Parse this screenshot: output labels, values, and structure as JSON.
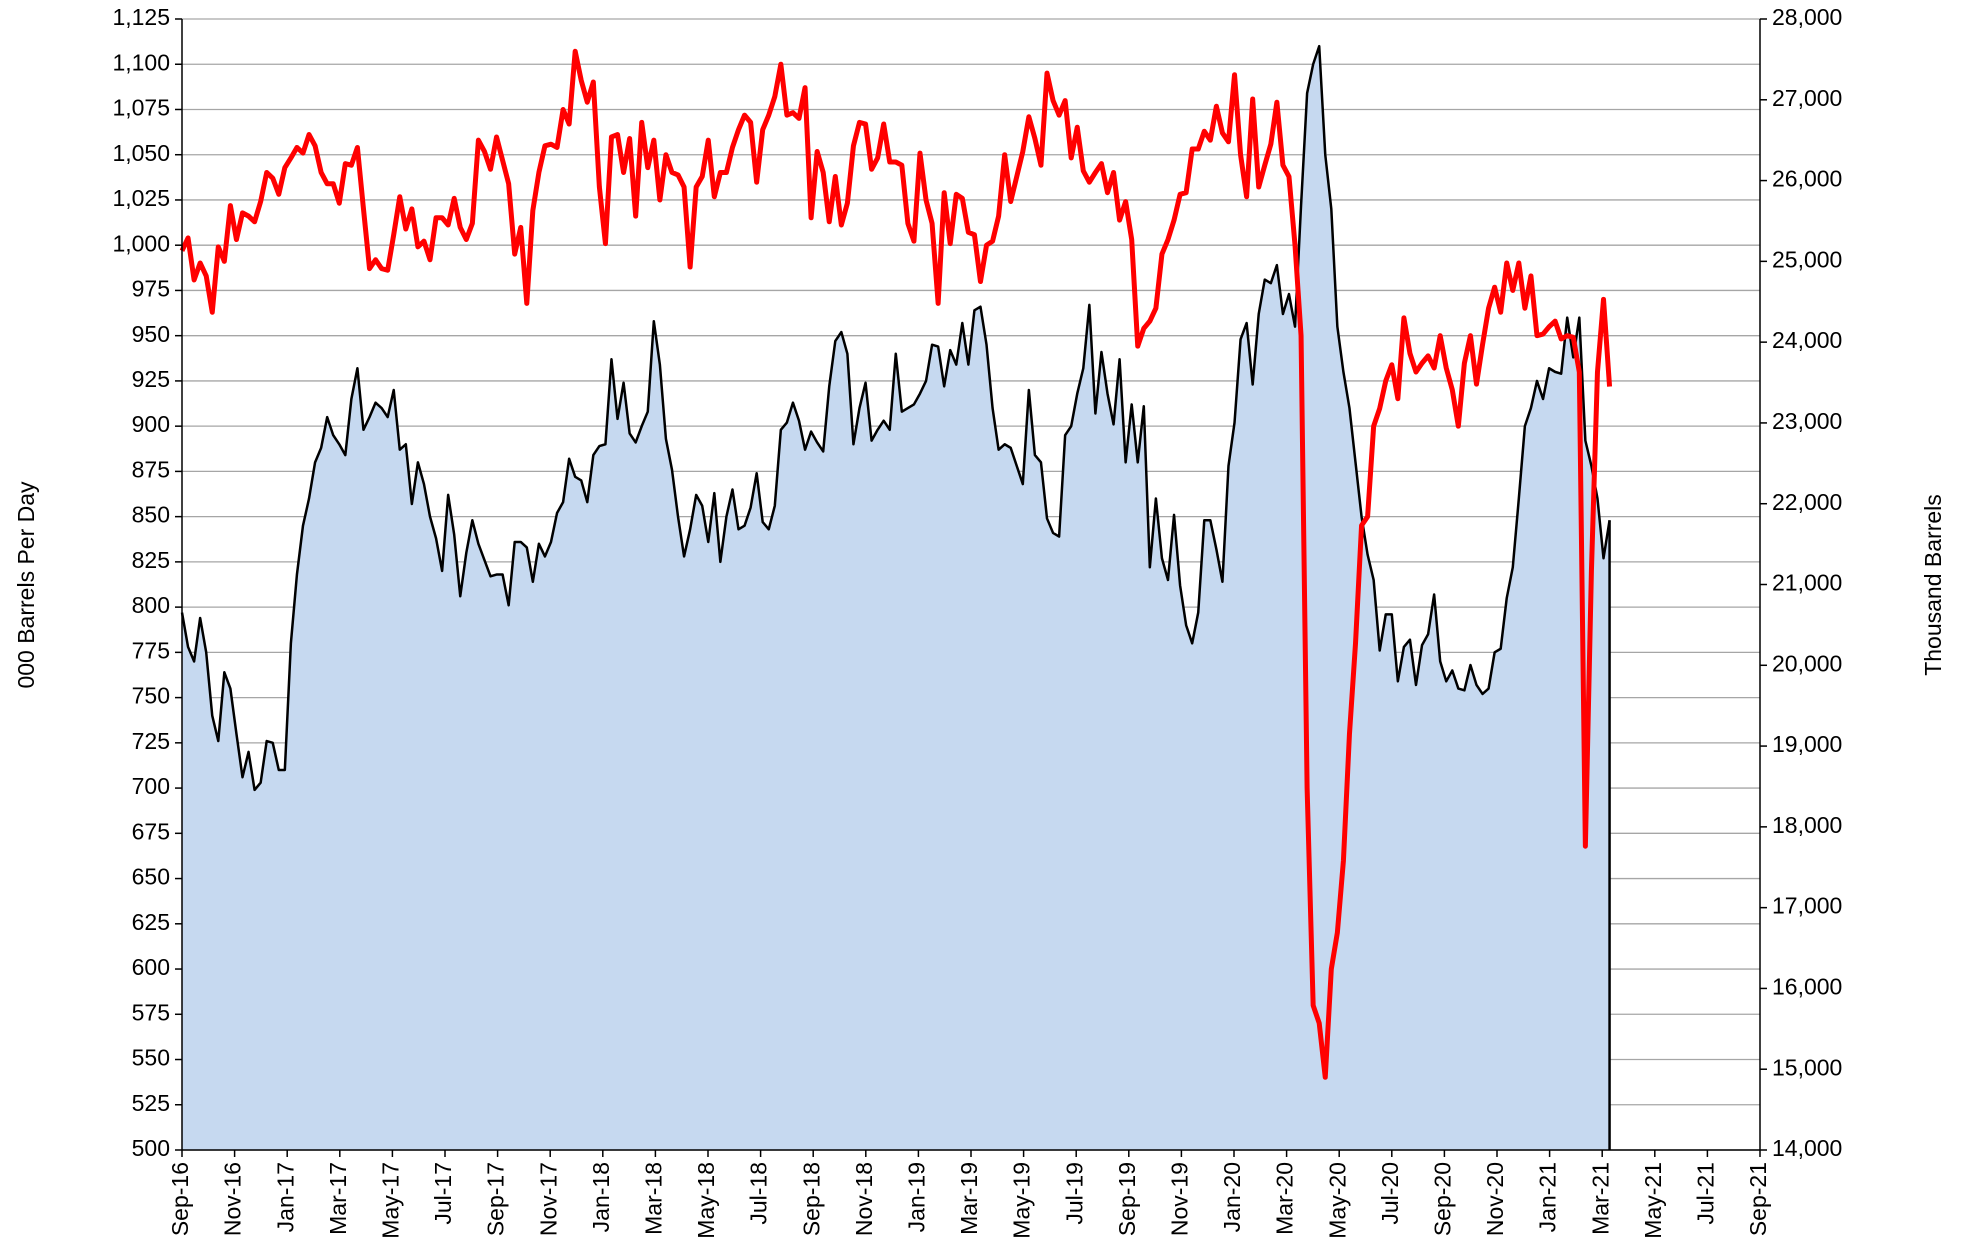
{
  "chart_data": {
    "type": "line",
    "ylabel": "000 Barrels Per Day",
    "y2label": "Thousand Barrels",
    "xlim": [
      0,
      60
    ],
    "xticks": [
      {
        "value": 0,
        "label": "Sep-16"
      },
      {
        "value": 2,
        "label": "Nov-16"
      },
      {
        "value": 4,
        "label": "Jan-17"
      },
      {
        "value": 6,
        "label": "Mar-17"
      },
      {
        "value": 8,
        "label": "May-17"
      },
      {
        "value": 10,
        "label": "Jul-17"
      },
      {
        "value": 12,
        "label": "Sep-17"
      },
      {
        "value": 14,
        "label": "Nov-17"
      },
      {
        "value": 16,
        "label": "Jan-18"
      },
      {
        "value": 18,
        "label": "Mar-18"
      },
      {
        "value": 20,
        "label": "May-18"
      },
      {
        "value": 22,
        "label": "Jul-18"
      },
      {
        "value": 24,
        "label": "Sep-18"
      },
      {
        "value": 26,
        "label": "Nov-18"
      },
      {
        "value": 28,
        "label": "Jan-19"
      },
      {
        "value": 30,
        "label": "Mar-19"
      },
      {
        "value": 32,
        "label": "May-19"
      },
      {
        "value": 34,
        "label": "Jul-19"
      },
      {
        "value": 36,
        "label": "Sep-19"
      },
      {
        "value": 38,
        "label": "Nov-19"
      },
      {
        "value": 40,
        "label": "Jan-20"
      },
      {
        "value": 42,
        "label": "Mar-20"
      },
      {
        "value": 44,
        "label": "May-20"
      },
      {
        "value": 46,
        "label": "Jul-20"
      },
      {
        "value": 48,
        "label": "Sep-20"
      },
      {
        "value": 50,
        "label": "Nov-20"
      },
      {
        "value": 52,
        "label": "Jan-21"
      },
      {
        "value": 54,
        "label": "Mar-21"
      },
      {
        "value": 56,
        "label": "May-21"
      },
      {
        "value": 58,
        "label": "Jul-21"
      },
      {
        "value": 60,
        "label": "Sep-21"
      }
    ],
    "ylim": [
      500,
      1125
    ],
    "yticks": [
      500,
      525,
      550,
      575,
      600,
      625,
      650,
      675,
      700,
      725,
      750,
      775,
      800,
      825,
      850,
      875,
      900,
      925,
      950,
      975,
      {
        "value": 1000,
        "label": "1,000"
      },
      {
        "value": 1025,
        "label": "1,025"
      },
      {
        "value": 1050,
        "label": "1,050"
      },
      {
        "value": 1075,
        "label": "1,075"
      },
      {
        "value": 1100,
        "label": "1,100"
      },
      {
        "value": 1125,
        "label": "1,125"
      }
    ],
    "y2lim": [
      14000,
      28000
    ],
    "y2ticks": [
      {
        "value": 14000,
        "label": "14,000"
      },
      {
        "value": 15000,
        "label": "15,000"
      },
      {
        "value": 16000,
        "label": "16,000"
      },
      {
        "value": 17000,
        "label": "17,000"
      },
      {
        "value": 18000,
        "label": "18,000"
      },
      {
        "value": 19000,
        "label": "19,000"
      },
      {
        "value": 20000,
        "label": "20,000"
      },
      {
        "value": 21000,
        "label": "21,000"
      },
      {
        "value": 22000,
        "label": "22,000"
      },
      {
        "value": 23000,
        "label": "23,000"
      },
      {
        "value": 24000,
        "label": "24,000"
      },
      {
        "value": 25000,
        "label": "25,000"
      },
      {
        "value": 26000,
        "label": "26,000"
      },
      {
        "value": 27000,
        "label": "27,000"
      },
      {
        "value": 28000,
        "label": "28,000"
      }
    ],
    "grid": true,
    "x": [
      0,
      0.23,
      0.46,
      0.69,
      0.92,
      1.15,
      1.38,
      1.61,
      1.84,
      2.07,
      2.3,
      2.53,
      2.76,
      2.99,
      3.22,
      3.45,
      3.68,
      3.91,
      4.14,
      4.37,
      4.6,
      4.83,
      5.06,
      5.29,
      5.52,
      5.75,
      5.98,
      6.21,
      6.44,
      6.67,
      6.9,
      7.13,
      7.36,
      7.59,
      7.82,
      8.05,
      8.28,
      8.51,
      8.74,
      8.97,
      9.2,
      9.43,
      9.66,
      9.89,
      10.12,
      10.35,
      10.58,
      10.81,
      11.04,
      11.27,
      11.5,
      11.73,
      11.96,
      12.19,
      12.42,
      12.65,
      12.88,
      13.11,
      13.34,
      13.57,
      13.8,
      14.03,
      14.26,
      14.49,
      14.72,
      14.95,
      15.18,
      15.41,
      15.64,
      15.87,
      16.1,
      16.33,
      16.56,
      16.79,
      17.02,
      17.25,
      17.48,
      17.71,
      17.94,
      18.17,
      18.4,
      18.63,
      18.86,
      19.09,
      19.32,
      19.55,
      19.78,
      20.01,
      20.24,
      20.47,
      20.7,
      20.93,
      21.16,
      21.39,
      21.62,
      21.85,
      22.08,
      22.31,
      22.54,
      22.77,
      23,
      23.23,
      23.46,
      23.69,
      23.92,
      24.15,
      24.38,
      24.61,
      24.84,
      25.07,
      25.3,
      25.53,
      25.76,
      25.99,
      26.22,
      26.45,
      26.68,
      26.91,
      27.14,
      27.37,
      27.6,
      27.83,
      28.06,
      28.29,
      28.52,
      28.75,
      28.98,
      29.21,
      29.44,
      29.67,
      29.9,
      30.13,
      30.36,
      30.59,
      30.82,
      31.05,
      31.28,
      31.51,
      31.74,
      31.97,
      32.2,
      32.43,
      32.66,
      32.89,
      33.12,
      33.35,
      33.58,
      33.81,
      34.04,
      34.27,
      34.5,
      34.73,
      34.96,
      35.19,
      35.42,
      35.65,
      35.88,
      36.11,
      36.34,
      36.57,
      36.8,
      37.03,
      37.26,
      37.49,
      37.72,
      37.95,
      38.18,
      38.41,
      38.64,
      38.87,
      39.1,
      39.33,
      39.56,
      39.79,
      40.02,
      40.25,
      40.48,
      40.71,
      40.94,
      41.17,
      41.4,
      41.63,
      41.86,
      42.09,
      42.32,
      42.55,
      42.78,
      43.01,
      43.24,
      43.47,
      43.7,
      43.93,
      44.16,
      44.39,
      44.62,
      44.85,
      45.08,
      45.31,
      45.54,
      45.77,
      46,
      46.23,
      46.46,
      46.69,
      46.92,
      47.15,
      47.38,
      47.61,
      47.84,
      48.07,
      48.3,
      48.53,
      48.76,
      48.99,
      49.22,
      49.45,
      49.68,
      49.91,
      50.14,
      50.37,
      50.6,
      50.83,
      51.06,
      51.29,
      51.52,
      51.75,
      51.98,
      52.21,
      52.44,
      52.67,
      52.9,
      53.13,
      53.36,
      53.59,
      53.82,
      54.05,
      54.28
    ],
    "series": [
      {
        "kind": "area",
        "color": "#000000",
        "fill": "#c6d9f0",
        "axis": "y",
        "values": [
          797,
          778,
          770,
          794,
          775,
          740,
          726,
          764,
          755,
          730,
          706,
          720,
          699,
          703,
          726,
          725,
          710,
          710,
          780,
          818,
          845,
          860,
          880,
          888,
          905,
          895,
          890,
          884,
          915,
          932,
          898,
          905,
          913,
          910,
          905,
          920,
          887,
          890,
          857,
          880,
          868,
          850,
          838,
          820,
          862,
          840,
          806,
          830,
          848,
          835,
          826,
          817,
          818,
          818,
          801,
          836,
          836,
          833,
          814,
          835,
          828,
          836,
          852,
          858,
          882,
          872,
          870,
          858,
          884,
          889,
          890,
          937,
          904,
          924,
          896,
          891,
          900,
          908,
          958,
          934,
          893,
          876,
          850,
          828,
          843,
          862,
          856,
          836,
          863,
          825,
          850,
          865,
          843,
          845,
          855,
          874,
          847,
          843,
          856,
          898,
          902,
          913,
          903,
          887,
          897,
          891,
          886,
          922,
          947,
          952,
          940,
          890,
          910,
          924,
          892,
          898,
          903,
          898,
          940,
          908,
          910,
          912,
          918,
          925,
          945,
          944,
          922,
          942,
          934,
          957,
          934,
          964,
          966,
          945,
          910,
          887,
          890,
          888,
          878,
          868,
          920,
          884,
          880,
          849,
          841,
          839,
          895,
          900,
          918,
          932,
          967,
          907,
          941,
          918,
          901,
          937,
          880,
          912,
          880,
          911,
          822,
          860,
          827,
          815,
          851,
          812,
          790,
          780,
          797,
          848,
          848,
          832,
          814,
          878,
          902,
          948,
          957,
          923,
          962,
          981,
          979,
          989,
          962,
          973,
          955,
          1022,
          1084,
          1100,
          1110,
          1050,
          1020,
          955,
          930,
          910,
          880,
          850,
          829,
          815,
          776,
          796,
          796,
          759,
          778,
          782,
          757,
          779,
          785,
          807,
          770,
          759,
          765,
          755,
          754,
          768,
          757,
          752,
          755,
          775,
          777,
          805,
          822,
          860,
          900,
          910,
          925,
          915,
          932,
          930,
          929,
          960,
          938,
          960,
          892,
          878,
          860,
          827,
          848
        ]
      },
      {
        "kind": "line",
        "color": "#ff0000",
        "axis": "y2",
        "values": [
          25130,
          25290,
          24770,
          24980,
          24820,
          24370,
          25180,
          25000,
          25690,
          25270,
          25600,
          25560,
          25490,
          25740,
          26100,
          26030,
          25830,
          26160,
          26280,
          26410,
          26340,
          26570,
          26430,
          26100,
          25960,
          25960,
          25720,
          26210,
          26190,
          26410,
          25650,
          24910,
          25020,
          24910,
          24890,
          25330,
          25800,
          25400,
          25650,
          25180,
          25250,
          25020,
          25540,
          25540,
          25450,
          25780,
          25420,
          25270,
          25470,
          26500,
          26360,
          26140,
          26540,
          26250,
          25960,
          25090,
          25420,
          24480,
          25630,
          26100,
          26430,
          26450,
          26410,
          26880,
          26700,
          27600,
          27240,
          26970,
          27220,
          25920,
          25220,
          26540,
          26570,
          26100,
          26520,
          25560,
          26720,
          26160,
          26500,
          25760,
          26320,
          26100,
          26070,
          25920,
          24930,
          25920,
          26050,
          26500,
          25800,
          26100,
          26100,
          26410,
          26630,
          26810,
          26720,
          25980,
          26630,
          26810,
          27040,
          27440,
          26810,
          26840,
          26770,
          27150,
          25540,
          26360,
          26100,
          25490,
          26050,
          25450,
          25720,
          26430,
          26720,
          26700,
          26140,
          26280,
          26700,
          26230,
          26230,
          26190,
          25470,
          25250,
          26340,
          25760,
          25470,
          24480,
          25850,
          25220,
          25830,
          25780,
          25360,
          25330,
          24750,
          25200,
          25250,
          25560,
          26320,
          25740,
          26050,
          26360,
          26790,
          26520,
          26190,
          27330,
          26990,
          26810,
          26990,
          26280,
          26660,
          26120,
          25980,
          26100,
          26210,
          25850,
          26100,
          25510,
          25740,
          25270,
          23950,
          24170,
          24260,
          24420,
          25090,
          25270,
          25510,
          25830,
          25850,
          26390,
          26390,
          26610,
          26500,
          26920,
          26590,
          26480,
          27310,
          26320,
          25800,
          27010,
          25920,
          26190,
          26450,
          26970,
          26190,
          26050,
          25200,
          24080,
          18480,
          15790,
          15570,
          14900,
          16240,
          16690,
          17580,
          19150,
          20270,
          21730,
          21840,
          22960,
          23180,
          23520,
          23720,
          23300,
          24300,
          23860,
          23630,
          23740,
          23830,
          23680,
          24080,
          23680,
          23410,
          22960,
          23740,
          24080,
          23480,
          23970,
          24420,
          24680,
          24370,
          24980,
          24640,
          24980,
          24420,
          24820,
          24080,
          24100,
          24190,
          24260,
          24040,
          24080,
          24060,
          23630,
          17760,
          21170,
          23630,
          24530,
          23450
        ]
      }
    ]
  }
}
